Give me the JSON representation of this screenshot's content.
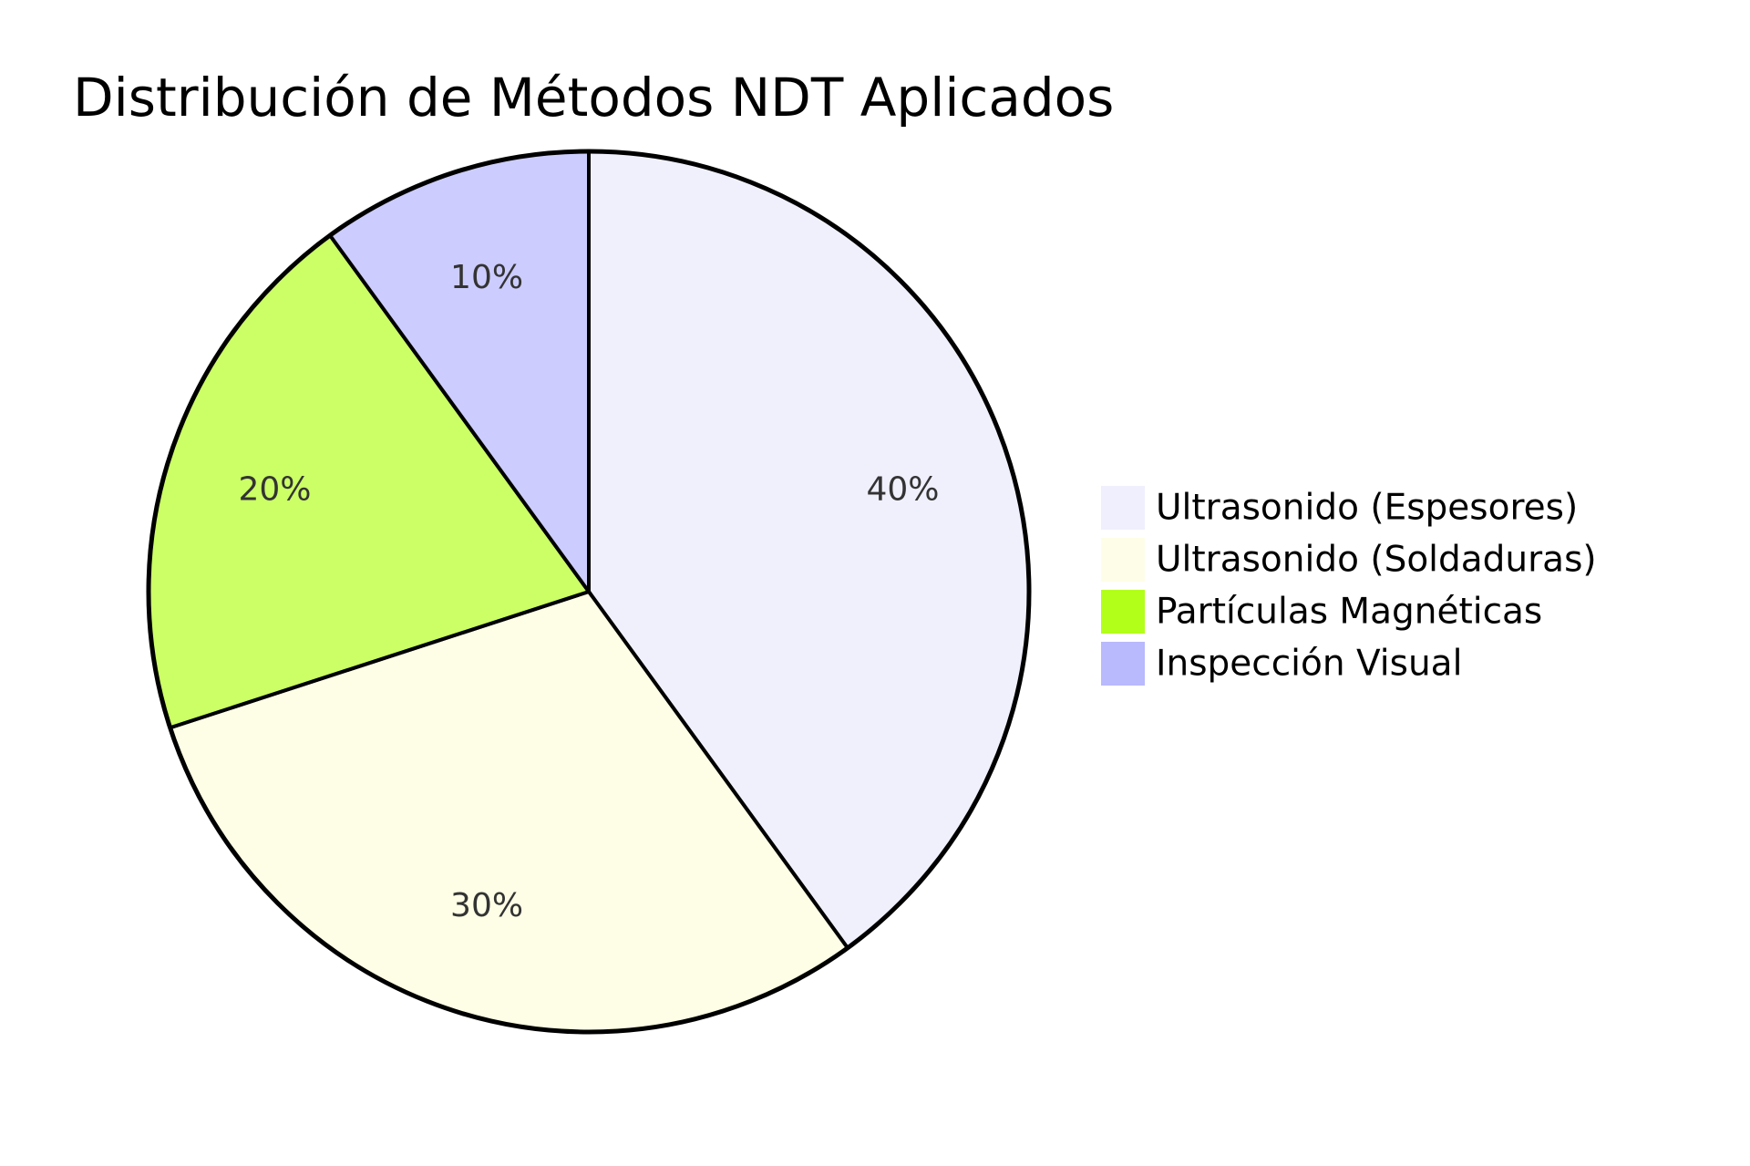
{
  "chart_data": {
    "type": "pie",
    "title": "Distribución de Métodos NDT Aplicados",
    "categories": [
      "Ultrasonido (Espesores)",
      "Ultrasonido (Soldaduras)",
      "Partículas Magnéticas",
      "Inspección Visual"
    ],
    "values": [
      40,
      30,
      20,
      10
    ],
    "labels": [
      "40%",
      "30%",
      "20%",
      "10%"
    ],
    "colors": [
      "#efeffd",
      "#fefee8",
      "#b2ff1a",
      "#b9b9fe"
    ],
    "slice_fill_colors": [
      "#f0f0fd",
      "#fefee6",
      "#ccff66",
      "#ccccfe"
    ],
    "legend_position": "right",
    "start_angle": "top",
    "direction": "clockwise"
  }
}
